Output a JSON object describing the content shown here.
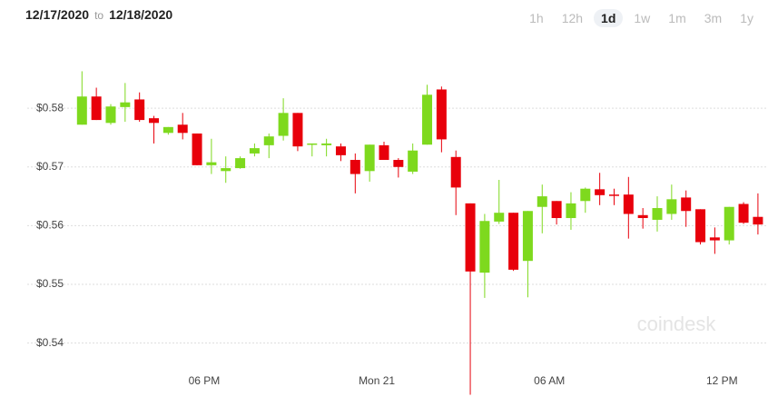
{
  "header": {
    "date_from": "12/17/2020",
    "to": "to",
    "date_to": "12/18/2020",
    "ranges": [
      "1h",
      "12h",
      "1d",
      "1w",
      "1m",
      "3m",
      "1y"
    ],
    "selected_range": 2
  },
  "watermark": "coindesk",
  "chart_data": {
    "type": "candlestick",
    "x": [
      13.75,
      14.25,
      14.75,
      15.25,
      15.75,
      16.25,
      16.75,
      17.25,
      17.75,
      18.25,
      18.75,
      19.25,
      19.75,
      20.25,
      20.75,
      21.25,
      21.75,
      22.25,
      22.75,
      23.25,
      23.75,
      24.25,
      24.75,
      25.25,
      25.75,
      26.25,
      26.75,
      27.25,
      27.75,
      28.25,
      28.75,
      29.25,
      29.75,
      30.25,
      30.75,
      31.25,
      31.75,
      32.25,
      32.75,
      33.25,
      33.75,
      34.25,
      34.75,
      35.25,
      35.75,
      36.25,
      36.75,
      37.25
    ],
    "open": [
      0.5772,
      0.582,
      0.5775,
      0.5802,
      0.5815,
      0.5783,
      0.5758,
      0.5772,
      0.5757,
      0.5703,
      0.5693,
      0.5698,
      0.5723,
      0.5737,
      0.5753,
      0.5792,
      0.5738,
      0.5737,
      0.5735,
      0.5712,
      0.5693,
      0.5737,
      0.5712,
      0.5692,
      0.5738,
      0.5832,
      0.5717,
      0.5638,
      0.552,
      0.5607,
      0.5622,
      0.554,
      0.5632,
      0.5642,
      0.5613,
      0.5642,
      0.5662,
      0.5653,
      0.5653,
      0.5618,
      0.561,
      0.562,
      0.5648,
      0.5628,
      0.558,
      0.5575,
      0.5637,
      0.5615
    ],
    "high": [
      0.5863,
      0.5835,
      0.5807,
      0.5843,
      0.5827,
      0.5787,
      0.5768,
      0.5792,
      0.5757,
      0.5748,
      0.5718,
      0.5718,
      0.574,
      0.5757,
      0.5817,
      0.5792,
      0.574,
      0.5748,
      0.574,
      0.5723,
      0.5738,
      0.5743,
      0.5715,
      0.574,
      0.584,
      0.5837,
      0.5728,
      0.5638,
      0.562,
      0.5678,
      0.5622,
      0.5625,
      0.567,
      0.5642,
      0.5657,
      0.5665,
      0.569,
      0.5663,
      0.5683,
      0.563,
      0.565,
      0.567,
      0.566,
      0.5628,
      0.5597,
      0.5632,
      0.564,
      0.5655
    ],
    "low": [
      0.5772,
      0.578,
      0.5772,
      0.5777,
      0.5777,
      0.574,
      0.5755,
      0.5747,
      0.5703,
      0.5688,
      0.5673,
      0.5697,
      0.5718,
      0.5715,
      0.5745,
      0.5727,
      0.5718,
      0.5718,
      0.571,
      0.5655,
      0.5675,
      0.5712,
      0.5682,
      0.5688,
      0.5738,
      0.5725,
      0.5618,
      0.5312,
      0.5477,
      0.5603,
      0.5523,
      0.5478,
      0.5587,
      0.5602,
      0.5593,
      0.5622,
      0.5635,
      0.5635,
      0.5578,
      0.5595,
      0.559,
      0.561,
      0.5598,
      0.5568,
      0.5552,
      0.5568,
      0.5603,
      0.5585
    ],
    "close": [
      0.582,
      0.578,
      0.5803,
      0.581,
      0.578,
      0.5775,
      0.5768,
      0.5758,
      0.5703,
      0.5708,
      0.5698,
      0.5715,
      0.5732,
      0.5752,
      0.5792,
      0.5735,
      0.574,
      0.574,
      0.572,
      0.5688,
      0.5738,
      0.5712,
      0.57,
      0.5728,
      0.5823,
      0.5747,
      0.5665,
      0.5522,
      0.5608,
      0.5622,
      0.5525,
      0.5625,
      0.565,
      0.5613,
      0.5638,
      0.5663,
      0.5652,
      0.5652,
      0.562,
      0.5613,
      0.563,
      0.5645,
      0.5625,
      0.5572,
      0.5575,
      0.5632,
      0.5605,
      0.5602
    ],
    "colors": {
      "up": "#7ed91e",
      "down": "#e8000b"
    },
    "xlim": [
      10.9,
      37.6
    ],
    "xticks": [
      {
        "value": 18,
        "label": "06 PM"
      },
      {
        "value": 24,
        "label": "Mon 21"
      },
      {
        "value": 30,
        "label": "06 AM"
      },
      {
        "value": 36,
        "label": "12 PM"
      }
    ],
    "ylim": [
      0.535,
      0.5907
    ],
    "yticks": [
      {
        "value": 0.54,
        "label": "$0.54"
      },
      {
        "value": 0.55,
        "label": "$0.55"
      },
      {
        "value": 0.56,
        "label": "$0.56"
      },
      {
        "value": 0.57,
        "label": "$0.57"
      },
      {
        "value": 0.58,
        "label": "$0.58"
      }
    ],
    "grid": true
  }
}
